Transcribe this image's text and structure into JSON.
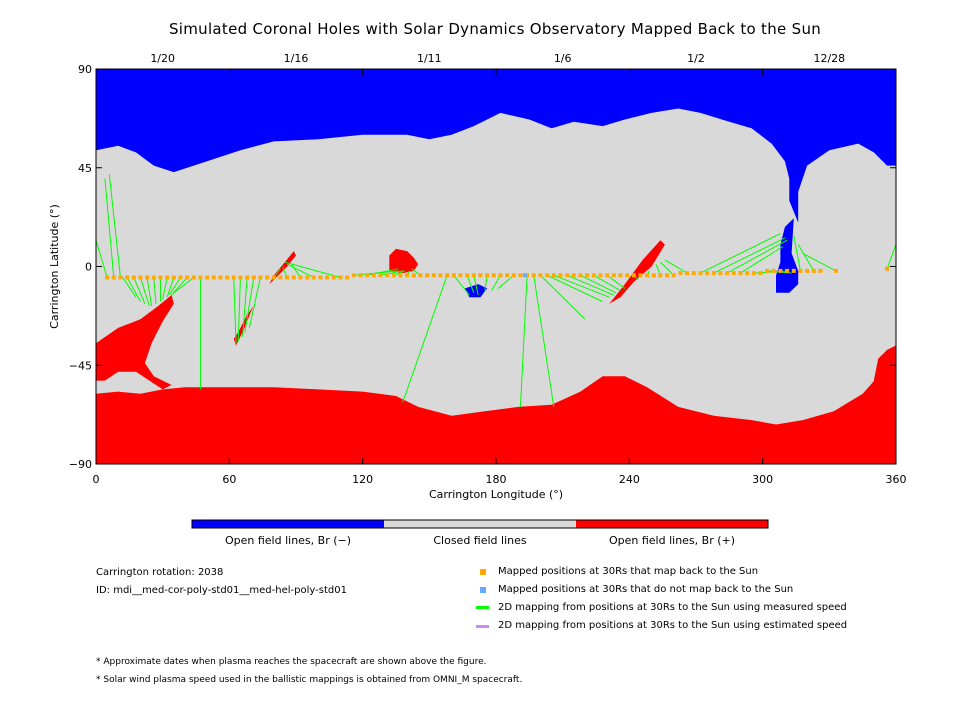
{
  "title": "Simulated Coronal Holes with Solar Dynamics Observatory Mapped Back to the Sun",
  "chart_data": {
    "type": "scatter",
    "xlabel": "Carrington Longitude (°)",
    "ylabel": "Carrington Latitude (°)",
    "xlim": [
      0,
      360
    ],
    "ylim": [
      -90,
      90
    ],
    "x_ticks": [
      0,
      60,
      120,
      180,
      240,
      300,
      360
    ],
    "y_ticks": [
      90,
      45,
      0,
      -45,
      -90
    ],
    "y_tick_labels": [
      "90",
      "45",
      "0",
      "−45",
      "−90"
    ],
    "top_date_labels": [
      {
        "label": "1/20",
        "lon": 30
      },
      {
        "label": "1/16",
        "lon": 90
      },
      {
        "label": "1/11",
        "lon": 150
      },
      {
        "label": "1/6",
        "lon": 210
      },
      {
        "label": "1/2",
        "lon": 270
      },
      {
        "label": "12/28",
        "lon": 330
      }
    ],
    "colors": {
      "open_negative": "#0000ff",
      "closed": "#d9d9d9",
      "open_positive": "#ff0000",
      "mapped_yes": "#ffaa00",
      "mapped_no": "#66aaff",
      "measured_line": "#00ff00",
      "estimated_line": "#cc88ff"
    },
    "colorbar": {
      "labels": [
        "Open field lines, Br (−)",
        "Closed field lines",
        "Open field lines, Br (+)"
      ]
    },
    "spacecraft_points": [
      [
        5,
        -5
      ],
      [
        8,
        -5
      ],
      [
        11,
        -5
      ],
      [
        14,
        -5
      ],
      [
        17,
        -5
      ],
      [
        20,
        -5
      ],
      [
        23,
        -5
      ],
      [
        26,
        -5
      ],
      [
        29,
        -5
      ],
      [
        32,
        -5
      ],
      [
        35,
        -5
      ],
      [
        38,
        -5
      ],
      [
        41,
        -5
      ],
      [
        44,
        -5
      ],
      [
        47,
        -5
      ],
      [
        50,
        -5
      ],
      [
        53,
        -5
      ],
      [
        56,
        -5
      ],
      [
        59,
        -5
      ],
      [
        62,
        -5
      ],
      [
        65,
        -5
      ],
      [
        68,
        -5
      ],
      [
        71,
        -5
      ],
      [
        74,
        -5
      ],
      [
        77,
        -5
      ],
      [
        80,
        -5
      ],
      [
        83,
        -5
      ],
      [
        86,
        -5
      ],
      [
        89,
        -5
      ],
      [
        92,
        -5
      ],
      [
        95,
        -5
      ],
      [
        98,
        -5
      ],
      [
        101,
        -5
      ],
      [
        104,
        -5
      ],
      [
        107,
        -5
      ],
      [
        110,
        -5
      ],
      [
        113,
        -5
      ],
      [
        116,
        -4
      ],
      [
        119,
        -4
      ],
      [
        122,
        -4
      ],
      [
        125,
        -4
      ],
      [
        128,
        -4
      ],
      [
        131,
        -4
      ],
      [
        134,
        -4
      ],
      [
        137,
        -4
      ],
      [
        140,
        -4
      ],
      [
        143,
        -4
      ],
      [
        146,
        -4
      ],
      [
        149,
        -4
      ],
      [
        152,
        -4
      ],
      [
        155,
        -4
      ],
      [
        158,
        -4
      ],
      [
        161,
        -4
      ],
      [
        164,
        -4
      ],
      [
        167,
        -4
      ],
      [
        170,
        -4
      ],
      [
        173,
        -4
      ],
      [
        176,
        -4
      ],
      [
        179,
        -4
      ],
      [
        182,
        -4
      ],
      [
        185,
        -4
      ],
      [
        188,
        -4
      ],
      [
        191,
        -4
      ],
      [
        194,
        -4
      ],
      [
        197,
        -4
      ],
      [
        200,
        -4
      ],
      [
        203,
        -4
      ],
      [
        206,
        -4
      ],
      [
        209,
        -4
      ],
      [
        212,
        -4
      ],
      [
        215,
        -4
      ],
      [
        218,
        -4
      ],
      [
        221,
        -4
      ],
      [
        224,
        -4
      ],
      [
        227,
        -4
      ],
      [
        230,
        -4
      ],
      [
        233,
        -4
      ],
      [
        236,
        -4
      ],
      [
        239,
        -4
      ],
      [
        242,
        -4
      ],
      [
        245,
        -4
      ],
      [
        248,
        -4
      ],
      [
        251,
        -4
      ],
      [
        254,
        -4
      ],
      [
        257,
        -4
      ],
      [
        260,
        -4
      ],
      [
        263,
        -3
      ],
      [
        266,
        -3
      ],
      [
        269,
        -3
      ],
      [
        272,
        -3
      ],
      [
        275,
        -3
      ],
      [
        278,
        -3
      ],
      [
        281,
        -3
      ],
      [
        284,
        -3
      ],
      [
        287,
        -3
      ],
      [
        290,
        -3
      ],
      [
        293,
        -3
      ],
      [
        296,
        -3
      ],
      [
        299,
        -3
      ],
      [
        302,
        -2
      ],
      [
        305,
        -2
      ],
      [
        308,
        -2
      ],
      [
        311,
        -2
      ],
      [
        314,
        -2
      ],
      [
        317,
        -2
      ],
      [
        320,
        -2
      ],
      [
        323,
        -2
      ],
      [
        326,
        -2
      ],
      [
        333,
        -2
      ],
      [
        356,
        -1
      ]
    ],
    "unmapped_points": [
      [
        193,
        -4
      ]
    ],
    "measured_speed_mappings": [
      [
        [
          5,
          -5
        ],
        [
          0,
          12
        ]
      ],
      [
        [
          8,
          -5
        ],
        [
          4,
          40
        ]
      ],
      [
        [
          11,
          -5
        ],
        [
          6,
          42
        ]
      ],
      [
        [
          12,
          -5
        ],
        [
          18,
          -14
        ]
      ],
      [
        [
          14,
          -5
        ],
        [
          20,
          -16
        ]
      ],
      [
        [
          17,
          -5
        ],
        [
          22,
          -17
        ]
      ],
      [
        [
          20,
          -5
        ],
        [
          24,
          -18
        ]
      ],
      [
        [
          23,
          -5
        ],
        [
          25,
          -18
        ]
      ],
      [
        [
          26,
          -5
        ],
        [
          27,
          -17
        ]
      ],
      [
        [
          29,
          -5
        ],
        [
          29,
          -16
        ]
      ],
      [
        [
          32,
          -5
        ],
        [
          30,
          -15
        ]
      ],
      [
        [
          35,
          -5
        ],
        [
          32,
          -14
        ]
      ],
      [
        [
          38,
          -5
        ],
        [
          33,
          -13
        ]
      ],
      [
        [
          41,
          -5
        ],
        [
          34,
          -13
        ]
      ],
      [
        [
          44,
          -5
        ],
        [
          35,
          -12
        ]
      ],
      [
        [
          47,
          -5
        ],
        [
          47,
          -56
        ]
      ],
      [
        [
          62,
          -5
        ],
        [
          63,
          -35
        ]
      ],
      [
        [
          65,
          -5
        ],
        [
          64,
          -34
        ]
      ],
      [
        [
          68,
          -5
        ],
        [
          66,
          -32
        ]
      ],
      [
        [
          71,
          -5
        ],
        [
          67,
          -30
        ]
      ],
      [
        [
          74,
          -5
        ],
        [
          69,
          -28
        ]
      ],
      [
        [
          80,
          -5
        ],
        [
          83,
          -1
        ]
      ],
      [
        [
          86,
          -5
        ],
        [
          84,
          0
        ]
      ],
      [
        [
          92,
          -5
        ],
        [
          88,
          1
        ]
      ],
      [
        [
          98,
          -5
        ],
        [
          86,
          1
        ]
      ],
      [
        [
          110,
          -5
        ],
        [
          85,
          2
        ]
      ],
      [
        [
          116,
          -4
        ],
        [
          136,
          -2
        ]
      ],
      [
        [
          122,
          -4
        ],
        [
          136,
          -1
        ]
      ],
      [
        [
          128,
          -4
        ],
        [
          138,
          -2
        ]
      ],
      [
        [
          134,
          -4
        ],
        [
          139,
          -2
        ]
      ],
      [
        [
          140,
          -4
        ],
        [
          141,
          -2
        ]
      ],
      [
        [
          146,
          -4
        ],
        [
          142,
          -1
        ]
      ],
      [
        [
          158,
          -4
        ],
        [
          138,
          -62
        ]
      ],
      [
        [
          161,
          -4
        ],
        [
          168,
          -13
        ]
      ],
      [
        [
          167,
          -4
        ],
        [
          170,
          -12
        ]
      ],
      [
        [
          170,
          -4
        ],
        [
          172,
          -13
        ]
      ],
      [
        [
          176,
          -4
        ],
        [
          175,
          -11
        ]
      ],
      [
        [
          182,
          -4
        ],
        [
          178,
          -11
        ]
      ],
      [
        [
          188,
          -4
        ],
        [
          181,
          -10
        ]
      ],
      [
        [
          194,
          -4
        ],
        [
          191,
          -64
        ]
      ],
      [
        [
          197,
          -4
        ],
        [
          206,
          -64
        ]
      ],
      [
        [
          200,
          -4
        ],
        [
          220,
          -24
        ]
      ],
      [
        [
          203,
          -4
        ],
        [
          228,
          -16
        ]
      ],
      [
        [
          206,
          -4
        ],
        [
          231,
          -14
        ]
      ],
      [
        [
          212,
          -4
        ],
        [
          233,
          -13
        ]
      ],
      [
        [
          218,
          -4
        ],
        [
          234,
          -12
        ]
      ],
      [
        [
          224,
          -4
        ],
        [
          236,
          -11
        ]
      ],
      [
        [
          230,
          -4
        ],
        [
          238,
          -10
        ]
      ],
      [
        [
          242,
          -4
        ],
        [
          244,
          -6
        ]
      ],
      [
        [
          248,
          -4
        ],
        [
          249,
          -2
        ]
      ],
      [
        [
          254,
          -4
        ],
        [
          252,
          1
        ]
      ],
      [
        [
          260,
          -4
        ],
        [
          254,
          2
        ]
      ],
      [
        [
          266,
          -3
        ],
        [
          256,
          3
        ]
      ],
      [
        [
          272,
          -3
        ],
        [
          308,
          15
        ]
      ],
      [
        [
          278,
          -3
        ],
        [
          310,
          13
        ]
      ],
      [
        [
          284,
          -3
        ],
        [
          311,
          12
        ]
      ],
      [
        [
          290,
          -3
        ],
        [
          309,
          9
        ]
      ],
      [
        [
          296,
          -3
        ],
        [
          312,
          -2
        ]
      ],
      [
        [
          302,
          -2
        ],
        [
          313,
          -3
        ]
      ],
      [
        [
          317,
          -2
        ],
        [
          314,
          14
        ]
      ],
      [
        [
          323,
          -2
        ],
        [
          316,
          10
        ]
      ],
      [
        [
          333,
          -2
        ],
        [
          318,
          6
        ]
      ],
      [
        [
          356,
          -1
        ],
        [
          360,
          10
        ]
      ]
    ]
  },
  "info": {
    "rotation": "Carrington rotation: 2038",
    "id": "ID: mdi__med-cor-poly-std01__med-hel-poly-std01"
  },
  "legend": [
    {
      "label": "Mapped positions at 30Rs that map back to the Sun",
      "kind": "square",
      "color": "#ffaa00"
    },
    {
      "label": "Mapped positions at 30Rs that do not map back to the Sun",
      "kind": "square",
      "color": "#66aaff"
    },
    {
      "label": "2D mapping from positions at 30Rs to the Sun using measured speed",
      "kind": "line",
      "color": "#00ff00"
    },
    {
      "label": "2D mapping from positions at 30Rs to the Sun using estimated speed",
      "kind": "line",
      "color": "#cc88ff"
    }
  ],
  "footnotes": [
    "* Approximate dates when plasma reaches the spacecraft are shown above the figure.",
    "* Solar wind plasma speed used in the ballistic mappings is obtained from OMNI_M spacecraft."
  ]
}
